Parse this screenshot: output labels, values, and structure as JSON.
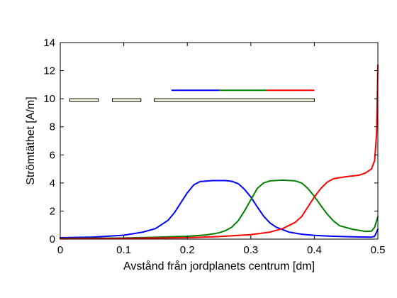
{
  "chart_data": {
    "type": "line",
    "xlabel": "Avstånd från jordplanets centrum [dm]",
    "ylabel": "Strömtäthet [A/m]",
    "xlim": [
      0,
      0.5
    ],
    "ylim": [
      0,
      14
    ],
    "x_ticks": [
      "0",
      "0.1",
      "0.2",
      "0.3",
      "0.4",
      "0.5"
    ],
    "y_ticks": [
      "0",
      "2",
      "4",
      "6",
      "8",
      "10",
      "12",
      "14"
    ],
    "grid": false,
    "series": [
      {
        "color": "#0000ff",
        "points": [
          [
            0,
            0.1
          ],
          [
            0.05,
            0.14
          ],
          [
            0.1,
            0.28
          ],
          [
            0.13,
            0.5
          ],
          [
            0.15,
            0.75
          ],
          [
            0.17,
            1.35
          ],
          [
            0.18,
            1.9
          ],
          [
            0.19,
            2.6
          ],
          [
            0.2,
            3.3
          ],
          [
            0.21,
            3.85
          ],
          [
            0.22,
            4.1
          ],
          [
            0.24,
            4.17
          ],
          [
            0.26,
            4.17
          ],
          [
            0.27,
            4.12
          ],
          [
            0.28,
            3.95
          ],
          [
            0.29,
            3.55
          ],
          [
            0.3,
            3.0
          ],
          [
            0.31,
            2.3
          ],
          [
            0.32,
            1.65
          ],
          [
            0.33,
            1.15
          ],
          [
            0.34,
            0.85
          ],
          [
            0.36,
            0.5
          ],
          [
            0.38,
            0.35
          ],
          [
            0.4,
            0.27
          ],
          [
            0.43,
            0.2
          ],
          [
            0.46,
            0.16
          ],
          [
            0.49,
            0.14
          ],
          [
            0.495,
            0.2
          ],
          [
            0.5,
            0.7
          ]
        ]
      },
      {
        "color": "#008000",
        "points": [
          [
            0,
            0.05
          ],
          [
            0.1,
            0.08
          ],
          [
            0.15,
            0.13
          ],
          [
            0.2,
            0.2
          ],
          [
            0.23,
            0.3
          ],
          [
            0.25,
            0.45
          ],
          [
            0.26,
            0.6
          ],
          [
            0.27,
            0.85
          ],
          [
            0.28,
            1.3
          ],
          [
            0.29,
            2.0
          ],
          [
            0.3,
            2.8
          ],
          [
            0.31,
            3.6
          ],
          [
            0.32,
            4.0
          ],
          [
            0.33,
            4.15
          ],
          [
            0.35,
            4.2
          ],
          [
            0.37,
            4.15
          ],
          [
            0.38,
            4.0
          ],
          [
            0.39,
            3.6
          ],
          [
            0.4,
            3.05
          ],
          [
            0.41,
            2.4
          ],
          [
            0.42,
            1.8
          ],
          [
            0.43,
            1.3
          ],
          [
            0.44,
            0.95
          ],
          [
            0.46,
            0.7
          ],
          [
            0.48,
            0.55
          ],
          [
            0.49,
            0.57
          ],
          [
            0.495,
            0.85
          ],
          [
            0.5,
            1.6
          ]
        ]
      },
      {
        "color": "#ff0000",
        "points": [
          [
            0,
            0.02
          ],
          [
            0.1,
            0.05
          ],
          [
            0.2,
            0.1
          ],
          [
            0.25,
            0.18
          ],
          [
            0.3,
            0.32
          ],
          [
            0.33,
            0.5
          ],
          [
            0.35,
            0.75
          ],
          [
            0.37,
            1.2
          ],
          [
            0.38,
            1.6
          ],
          [
            0.39,
            2.3
          ],
          [
            0.4,
            3.0
          ],
          [
            0.41,
            3.6
          ],
          [
            0.42,
            4.05
          ],
          [
            0.43,
            4.3
          ],
          [
            0.45,
            4.45
          ],
          [
            0.47,
            4.55
          ],
          [
            0.48,
            4.7
          ],
          [
            0.49,
            5.0
          ],
          [
            0.495,
            5.6
          ],
          [
            0.498,
            7.5
          ],
          [
            0.5,
            12.4
          ]
        ]
      }
    ],
    "legend_markers": [
      {
        "color": "#0000ff",
        "x0": 0.175,
        "x1": 0.25,
        "y": 10.6
      },
      {
        "color": "#008000",
        "x0": 0.25,
        "x1": 0.325,
        "y": 10.6
      },
      {
        "color": "#ff0000",
        "x0": 0.325,
        "x1": 0.4,
        "y": 10.6
      }
    ],
    "segments": [
      {
        "x0": 0.015,
        "x1": 0.06,
        "y": 9.9
      },
      {
        "x0": 0.082,
        "x1": 0.127,
        "y": 9.9
      },
      {
        "x0": 0.148,
        "x1": 0.4,
        "y": 9.9
      }
    ]
  }
}
